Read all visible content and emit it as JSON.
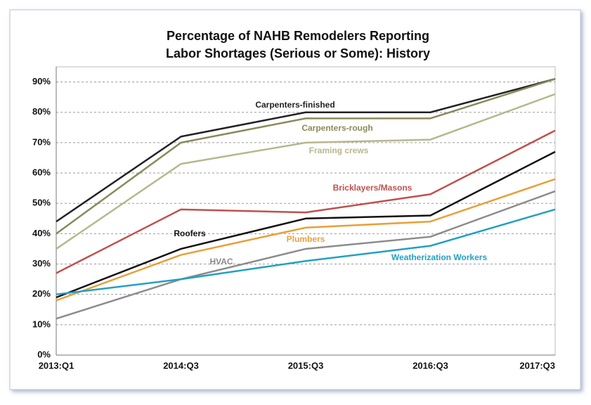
{
  "chart_data": {
    "type": "line",
    "title": "Percentage of NAHB Remodelers Reporting",
    "subtitle": "Labor Shortages (Serious or Some): History",
    "categories": [
      "2013:Q1",
      "2014:Q3",
      "2015:Q3",
      "2016:Q3",
      "2017:Q3"
    ],
    "series": [
      {
        "name": "Carpenters-finished",
        "color": "#222222",
        "values": [
          44,
          72,
          80,
          80,
          91
        ]
      },
      {
        "name": "Carpenters-rough",
        "color": "#8a8a5c",
        "values": [
          40,
          70,
          78,
          78,
          91
        ]
      },
      {
        "name": "Framing crews",
        "color": "#b7b78e",
        "values": [
          35,
          63,
          70,
          71,
          86
        ]
      },
      {
        "name": "Bricklayers/Masons",
        "color": "#c0504d",
        "values": [
          27,
          48,
          47,
          53,
          74
        ]
      },
      {
        "name": "Roofers",
        "color": "#111111",
        "values": [
          19,
          35,
          45,
          46,
          67
        ]
      },
      {
        "name": "Plumbers",
        "color": "#e8a038",
        "values": [
          18,
          33,
          42,
          44,
          58
        ]
      },
      {
        "name": "HVAC",
        "color": "#8c8c8c",
        "values": [
          12,
          25,
          35,
          39,
          54
        ]
      },
      {
        "name": "Weatherization Workers",
        "color": "#23a0c3",
        "values": [
          20,
          25,
          31,
          36,
          48
        ]
      }
    ],
    "ylim": [
      0,
      95
    ],
    "yticks": [
      {
        "value": 0,
        "label": "0%"
      },
      {
        "value": 10,
        "label": "10%"
      },
      {
        "value": 20,
        "label": "20%"
      },
      {
        "value": 30,
        "label": "30%"
      },
      {
        "value": 40,
        "label": "40%"
      },
      {
        "value": 50,
        "label": "50%"
      },
      {
        "value": 60,
        "label": "60%"
      },
      {
        "value": 70,
        "label": "70%"
      },
      {
        "value": 80,
        "label": "80%"
      },
      {
        "value": 90,
        "label": "90%"
      }
    ],
    "grid": true
  }
}
